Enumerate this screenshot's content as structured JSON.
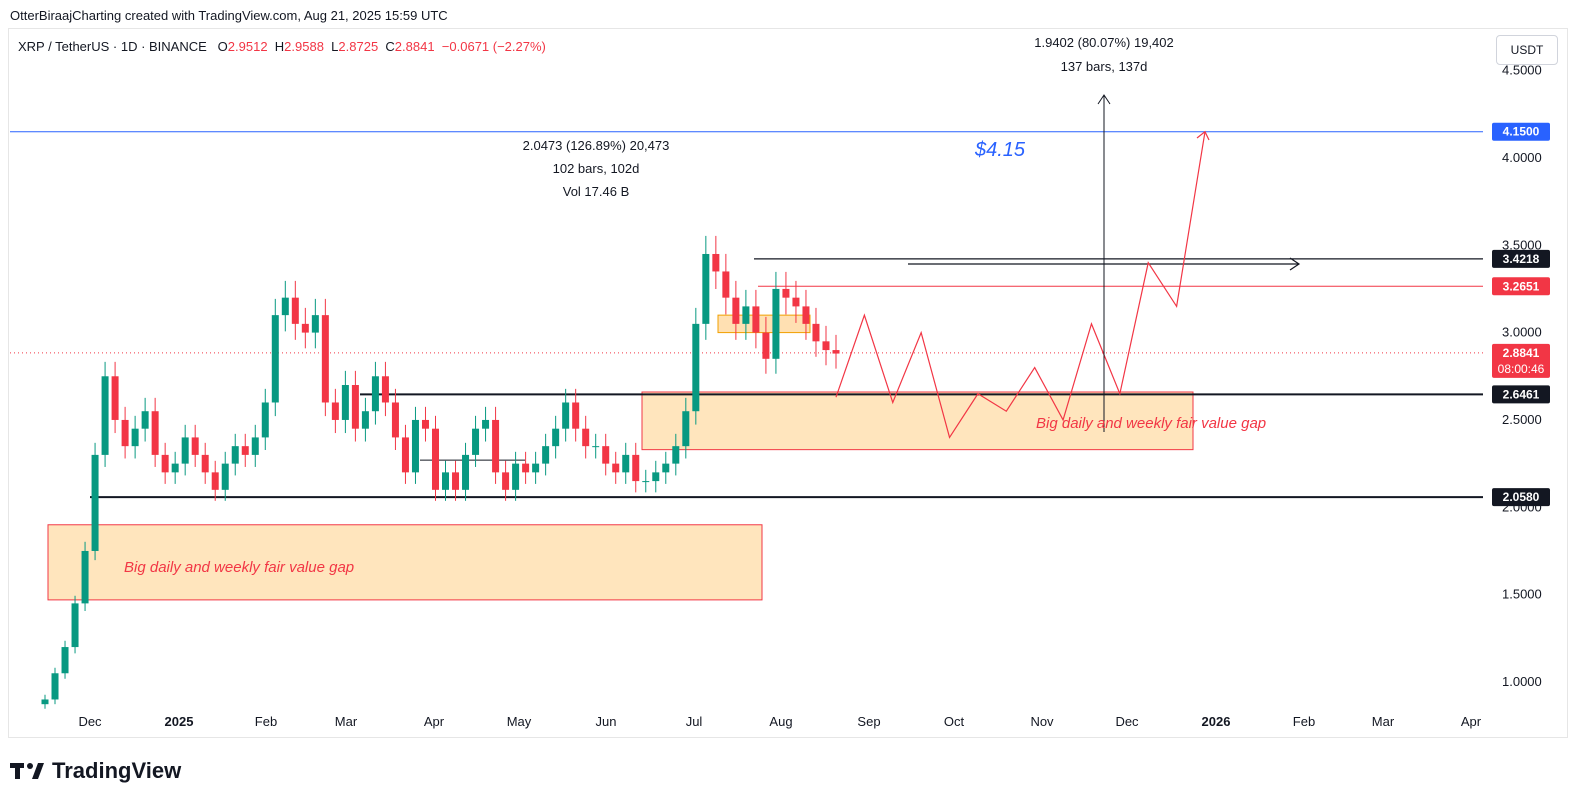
{
  "header": {
    "attribution": "OtterBiraajCharting created with TradingView.com, Aug 21, 2025 15:59 UTC"
  },
  "legend": {
    "symbol": "XRP / TetherUS · 1D · BINANCE",
    "open_label": "O",
    "open": "2.9512",
    "high_label": "H",
    "high": "2.9588",
    "low_label": "L",
    "low": "2.8725",
    "close_label": "C",
    "close": "2.8841",
    "change": "−0.0671 (−2.27%)"
  },
  "currency_button": "USDT",
  "footer": {
    "brand": "TradingView"
  },
  "colors": {
    "up": "#089981",
    "down": "#f23645",
    "blue_line": "#2962ff",
    "zone_fill": "#ffe0b2",
    "zone_border": "#f23645",
    "annotation": "#f23645"
  },
  "chart_data": {
    "type": "candlestick",
    "title": "",
    "xlabel": "",
    "ylabel": "",
    "ylim": [
      0.85,
      4.6
    ],
    "x_ticks": [
      "Dec",
      "2025",
      "Feb",
      "Mar",
      "Apr",
      "May",
      "Jun",
      "Jul",
      "Aug",
      "Sep",
      "Oct",
      "Nov",
      "Dec",
      "2026",
      "Feb",
      "Mar",
      "Apr"
    ],
    "y_ticks": [
      "1.0000",
      "1.5000",
      "2.0000",
      "2.5000",
      "3.0000",
      "3.5000",
      "4.0000",
      "4.5000"
    ],
    "price_tags": [
      {
        "value": 4.15,
        "label": "4.1500",
        "style": "blue"
      },
      {
        "value": 3.4218,
        "label": "3.4218",
        "style": "black"
      },
      {
        "value": 3.2651,
        "label": "3.2651",
        "style": "red"
      },
      {
        "value": 2.8841,
        "label": "2.8841",
        "sub": "08:00:46",
        "style": "red"
      },
      {
        "value": 2.6461,
        "label": "2.6461",
        "style": "black"
      },
      {
        "value": 2.058,
        "label": "2.0580",
        "style": "black"
      }
    ],
    "candles_approx_close": [
      0.9,
      1.05,
      1.2,
      1.45,
      1.75,
      2.3,
      2.75,
      2.5,
      2.35,
      2.45,
      2.55,
      2.3,
      2.2,
      2.25,
      2.4,
      2.3,
      2.2,
      2.1,
      2.25,
      2.35,
      2.3,
      2.4,
      2.6,
      3.1,
      3.2,
      3.05,
      3.0,
      3.1,
      2.6,
      2.5,
      2.7,
      2.45,
      2.55,
      2.75,
      2.6,
      2.4,
      2.2,
      2.5,
      2.45,
      2.1,
      2.2,
      2.1,
      2.3,
      2.45,
      2.5,
      2.2,
      2.1,
      2.25,
      2.2,
      2.25,
      2.35,
      2.45,
      2.6,
      2.45,
      2.35,
      2.35,
      2.25,
      2.2,
      2.3,
      2.15,
      2.15,
      2.2,
      2.25,
      2.35,
      2.55,
      3.05,
      3.45,
      3.35,
      3.2,
      3.05,
      3.15,
      3.0,
      2.85,
      3.25,
      3.2,
      3.15,
      3.05,
      2.95,
      2.9,
      2.88
    ],
    "measurements": [
      {
        "lines": [
          "2.0473 (126.89%) 20,473",
          "102 bars, 102d",
          "Vol 17.46 B"
        ]
      },
      {
        "lines": [
          "1.9402 (80.07%) 19,402",
          "137 bars, 137d"
        ]
      }
    ],
    "annotations": {
      "target_label": "$4.15",
      "fvg_label_left": "Big daily and weekly fair value gap",
      "fvg_label_right": "Big daily and weekly fair value gap"
    },
    "zones": [
      {
        "name": "left-fvg",
        "y_low": 1.47,
        "y_high": 1.9
      },
      {
        "name": "right-fvg",
        "y_low": 2.33,
        "y_high": 2.66
      },
      {
        "name": "small-zone",
        "y_low": 3.0,
        "y_high": 3.1
      }
    ],
    "horizontal_levels": [
      4.15,
      3.4218,
      3.2651,
      2.6461,
      2.058
    ],
    "projection_path": [
      2.63,
      3.1,
      2.6,
      3.0,
      2.4,
      2.65,
      2.55,
      2.8,
      2.5,
      3.05,
      2.65,
      3.4,
      3.15,
      4.15
    ]
  }
}
